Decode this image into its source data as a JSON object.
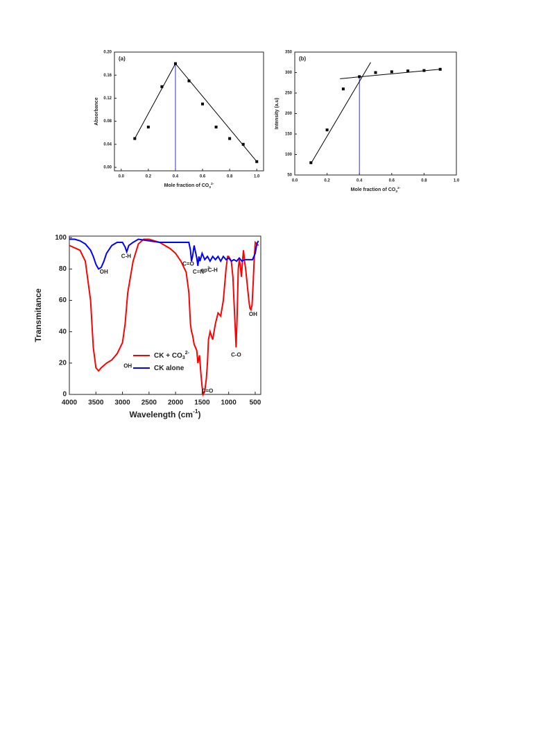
{
  "chart_data": [
    {
      "type": "scatter",
      "panel_label": "(a)",
      "xlabel": [
        {
          "text": "Mole fraction of CO"
        },
        {
          "text": "3",
          "shift": "sub"
        },
        {
          "text": "2-",
          "shift": "super"
        }
      ],
      "ylabel": [
        {
          "text": "Absorbance"
        }
      ],
      "x": [
        0.1,
        0.2,
        0.3,
        0.4,
        0.5,
        0.6,
        0.7,
        0.8,
        0.9,
        1.0
      ],
      "values": [
        0.05,
        0.07,
        0.14,
        0.18,
        0.15,
        0.11,
        0.07,
        0.05,
        0.04,
        0.01
      ],
      "color": "#000000",
      "fit_lines": [
        {
          "x": [
            0.1,
            0.4
          ],
          "y": [
            0.05,
            0.18
          ]
        },
        {
          "x": [
            0.4,
            1.0
          ],
          "y": [
            0.18,
            0.01
          ]
        }
      ],
      "vline": {
        "x": 0.4,
        "y": 0.18,
        "color": "#3333cc"
      },
      "xlim": [
        -0.05,
        1.05
      ],
      "xticks": [
        {
          "value": 0,
          "label": "0.0"
        },
        0.2,
        0.4,
        0.6,
        0.8,
        {
          "value": 1,
          "label": "1.0"
        }
      ],
      "ylim": [
        -0.006,
        0.2
      ],
      "yticks": [
        {
          "value": 0,
          "label": "0.00"
        },
        0.04,
        0.08,
        0.12,
        0.16,
        {
          "value": 0.2,
          "label": "0.20"
        }
      ]
    },
    {
      "type": "scatter",
      "panel_label": "(b)",
      "xlabel": [
        {
          "text": "Mole fraction of CO"
        },
        {
          "text": "3",
          "shift": "sub"
        },
        {
          "text": "2-",
          "shift": "super"
        }
      ],
      "ylabel": [
        {
          "text": "Intensity (a.u)"
        }
      ],
      "x": [
        0.1,
        0.2,
        0.3,
        0.4,
        0.5,
        0.6,
        0.7,
        0.8,
        0.9
      ],
      "values": [
        80,
        160,
        260,
        290,
        300,
        302,
        304,
        305,
        308
      ],
      "color": "#000000",
      "fit_lines": [
        {
          "x": [
            0.1,
            0.47
          ],
          "y": [
            78,
            325
          ]
        },
        {
          "x": [
            0.28,
            0.9
          ],
          "y": [
            285,
            308
          ]
        }
      ],
      "vline": {
        "x": 0.4,
        "y": 290,
        "color": "#3333cc"
      },
      "xlim": [
        0,
        1.0
      ],
      "xticks": [
        {
          "value": 0,
          "label": "0.0"
        },
        0.2,
        0.4,
        0.6,
        0.8,
        {
          "value": 1,
          "label": "1.0"
        }
      ],
      "ylim": [
        50,
        350
      ],
      "yticks": [
        50,
        100,
        150,
        200,
        250,
        300,
        350
      ]
    },
    {
      "type": "line",
      "xlabel": [
        {
          "text": "Wavelength (cm"
        },
        {
          "text": "-1",
          "shift": "super"
        },
        {
          "text": ")"
        }
      ],
      "ylabel": [
        {
          "text": "Transmitance"
        }
      ],
      "xlim": [
        4000,
        395
      ],
      "xticks": [
        4000,
        3500,
        3000,
        2500,
        2000,
        1500,
        1000,
        500
      ],
      "ylim": [
        0,
        101
      ],
      "yticks": [
        0,
        20,
        40,
        60,
        80,
        100
      ],
      "legend": "lower center",
      "series": [
        {
          "name": [
            {
              "text": "CK + CO"
            },
            {
              "text": "3",
              "shift": "sub"
            },
            {
              "text": "2-",
              "shift": "super"
            }
          ],
          "color": "#ff0000",
          "x": [
            4000,
            3800,
            3700,
            3600,
            3550,
            3500,
            3450,
            3400,
            3300,
            3200,
            3100,
            3000,
            2950,
            2900,
            2800,
            2700,
            2600,
            2500,
            2300,
            2100,
            2000,
            1900,
            1800,
            1750,
            1720,
            1700,
            1680,
            1650,
            1600,
            1580,
            1550,
            1520,
            1500,
            1480,
            1450,
            1420,
            1400,
            1380,
            1350,
            1300,
            1250,
            1200,
            1150,
            1100,
            1050,
            1020,
            1000,
            950,
            920,
            900,
            880,
            860,
            840,
            820,
            800,
            780,
            760,
            740,
            720,
            700,
            680,
            650,
            620,
            600,
            580,
            560,
            540,
            520,
            500,
            470,
            440
          ],
          "values": [
            95,
            92,
            85,
            60,
            30,
            17,
            15,
            17,
            20,
            22,
            26,
            33,
            45,
            65,
            85,
            96,
            99,
            99,
            97,
            93,
            90,
            85,
            78,
            65,
            45,
            40,
            38,
            32,
            28,
            20,
            25,
            12,
            5,
            0,
            2,
            10,
            20,
            35,
            40,
            35,
            45,
            52,
            50,
            60,
            80,
            88,
            88,
            85,
            75,
            60,
            45,
            30,
            50,
            80,
            86,
            82,
            75,
            85,
            92,
            85,
            80,
            70,
            60,
            55,
            54,
            57,
            70,
            85,
            97,
            96,
            95
          ]
        },
        {
          "name": [
            {
              "text": "CK alone"
            }
          ],
          "color": "#0000ff",
          "x": [
            4000,
            3900,
            3800,
            3700,
            3600,
            3550,
            3500,
            3450,
            3400,
            3350,
            3300,
            3200,
            3100,
            3000,
            2950,
            2920,
            2880,
            2800,
            2700,
            2500,
            2300,
            2000,
            1850,
            1750,
            1720,
            1700,
            1680,
            1650,
            1600,
            1580,
            1560,
            1540,
            1500,
            1450,
            1400,
            1350,
            1300,
            1250,
            1200,
            1150,
            1100,
            1050,
            1000,
            950,
            900,
            850,
            800,
            750,
            700,
            650,
            600,
            550,
            500,
            470,
            440
          ],
          "values": [
            99,
            99,
            98,
            96,
            92,
            88,
            83,
            80,
            81,
            85,
            90,
            95,
            97,
            97,
            94,
            91,
            95,
            97,
            99,
            98,
            97,
            97,
            97,
            97,
            92,
            85,
            88,
            95,
            87,
            82,
            88,
            85,
            90,
            86,
            88,
            85,
            88,
            86,
            88,
            85,
            88,
            86,
            87,
            85,
            86,
            85,
            87,
            85,
            86,
            86,
            86,
            86,
            90,
            96,
            98
          ]
        }
      ],
      "annotations": [
        {
          "x": 3350,
          "y": 78,
          "text": [
            {
              "text": "OH"
            }
          ]
        },
        {
          "x": 2930,
          "y": 88,
          "text": [
            {
              "text": "C-H"
            }
          ]
        },
        {
          "x": 1760,
          "y": 83,
          "text": [
            {
              "text": "C=O"
            }
          ]
        },
        {
          "x": 1570,
          "y": 78,
          "text": [
            {
              "text": "C=N"
            }
          ]
        },
        {
          "x": 1440,
          "y": 79,
          "text": [
            {
              "text": "sp"
            },
            {
              "text": "3",
              "shift": "super"
            }
          ]
        },
        {
          "x": 1300,
          "y": 79,
          "text": [
            {
              "text": "C-H"
            }
          ]
        },
        {
          "x": 2900,
          "y": 18,
          "text": [
            {
              "text": "OH"
            }
          ]
        },
        {
          "x": 1400,
          "y": 2,
          "text": [
            {
              "text": "C=O"
            }
          ]
        },
        {
          "x": 860,
          "y": 25,
          "text": [
            {
              "text": "C-O"
            }
          ]
        },
        {
          "x": 540,
          "y": 51,
          "text": [
            {
              "text": "OH"
            }
          ]
        }
      ]
    }
  ]
}
